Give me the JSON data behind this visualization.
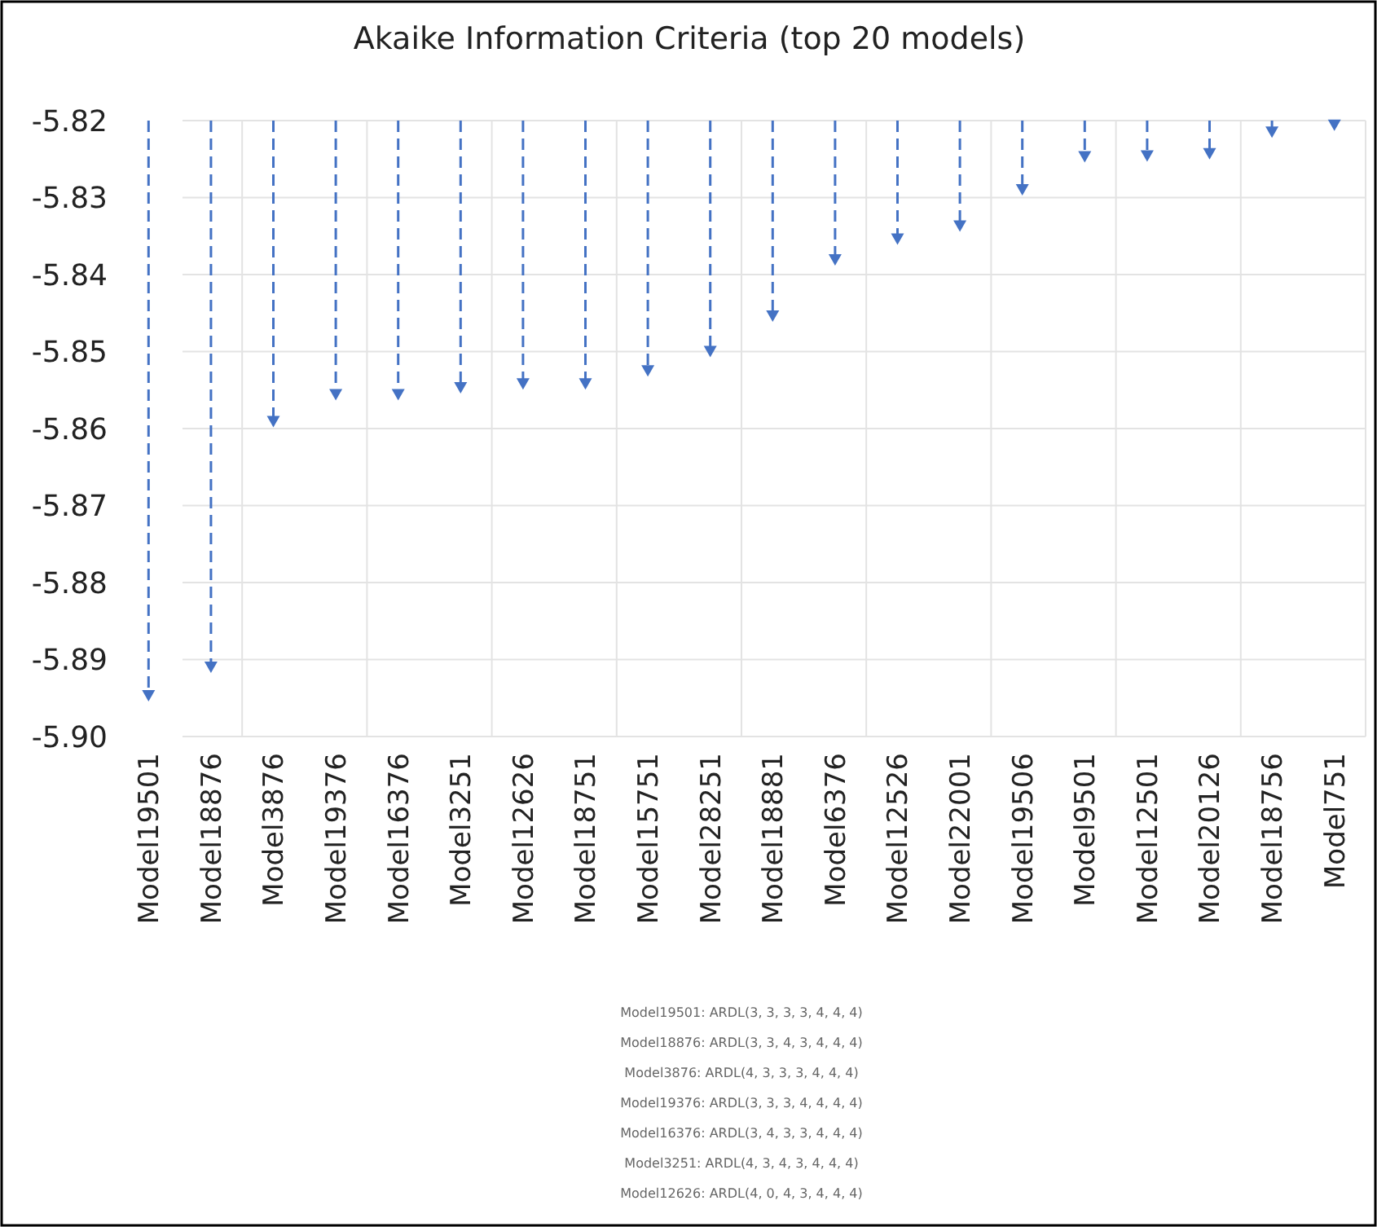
{
  "chart_data": {
    "type": "lollipop",
    "title": "Akaike Information Criteria (top 20 models)",
    "categories": [
      "Model19501",
      "Model18876",
      "Model3876",
      "Model19376",
      "Model16376",
      "Model3251",
      "Model12626",
      "Model18751",
      "Model15751",
      "Model28251",
      "Model18881",
      "Model6376",
      "Model12526",
      "Model22001",
      "Model19506",
      "Model9501",
      "Model12501",
      "Model20126",
      "Model18756",
      "Model751"
    ],
    "values": [
      -5.8947,
      -5.891,
      -5.8591,
      -5.8556,
      -5.8556,
      -5.8547,
      -5.8542,
      -5.8542,
      -5.8525,
      -5.85,
      -5.8454,
      -5.8381,
      -5.8354,
      -5.8337,
      -5.829,
      -5.8247,
      -5.8246,
      -5.8243,
      -5.8215,
      -5.8206
    ],
    "color": "#4472c4",
    "marker": "triangle",
    "line_style": "dashed",
    "grid": true,
    "ylim": [
      -5.9,
      -5.82
    ],
    "yticks": [
      {
        "value": -5.9,
        "label": "-5.90"
      },
      -5.89,
      -5.88,
      -5.87,
      -5.86,
      -5.85,
      -5.84,
      -5.83,
      -5.82
    ],
    "annotations": [
      "Model19501: ARDL(3, 3, 3, 3, 4, 4, 4)",
      "Model18876: ARDL(3, 3, 4, 3, 4, 4, 4)",
      "Model3876: ARDL(4, 3, 3, 3, 4, 4, 4)",
      "Model19376: ARDL(3, 3, 3, 4, 4, 4, 4)",
      "Model16376: ARDL(3, 4, 3, 3, 4, 4, 4)",
      "Model3251: ARDL(4, 3, 4, 3, 4, 4, 4)",
      "Model12626: ARDL(4, 0, 4, 3, 4, 4, 4)"
    ]
  }
}
